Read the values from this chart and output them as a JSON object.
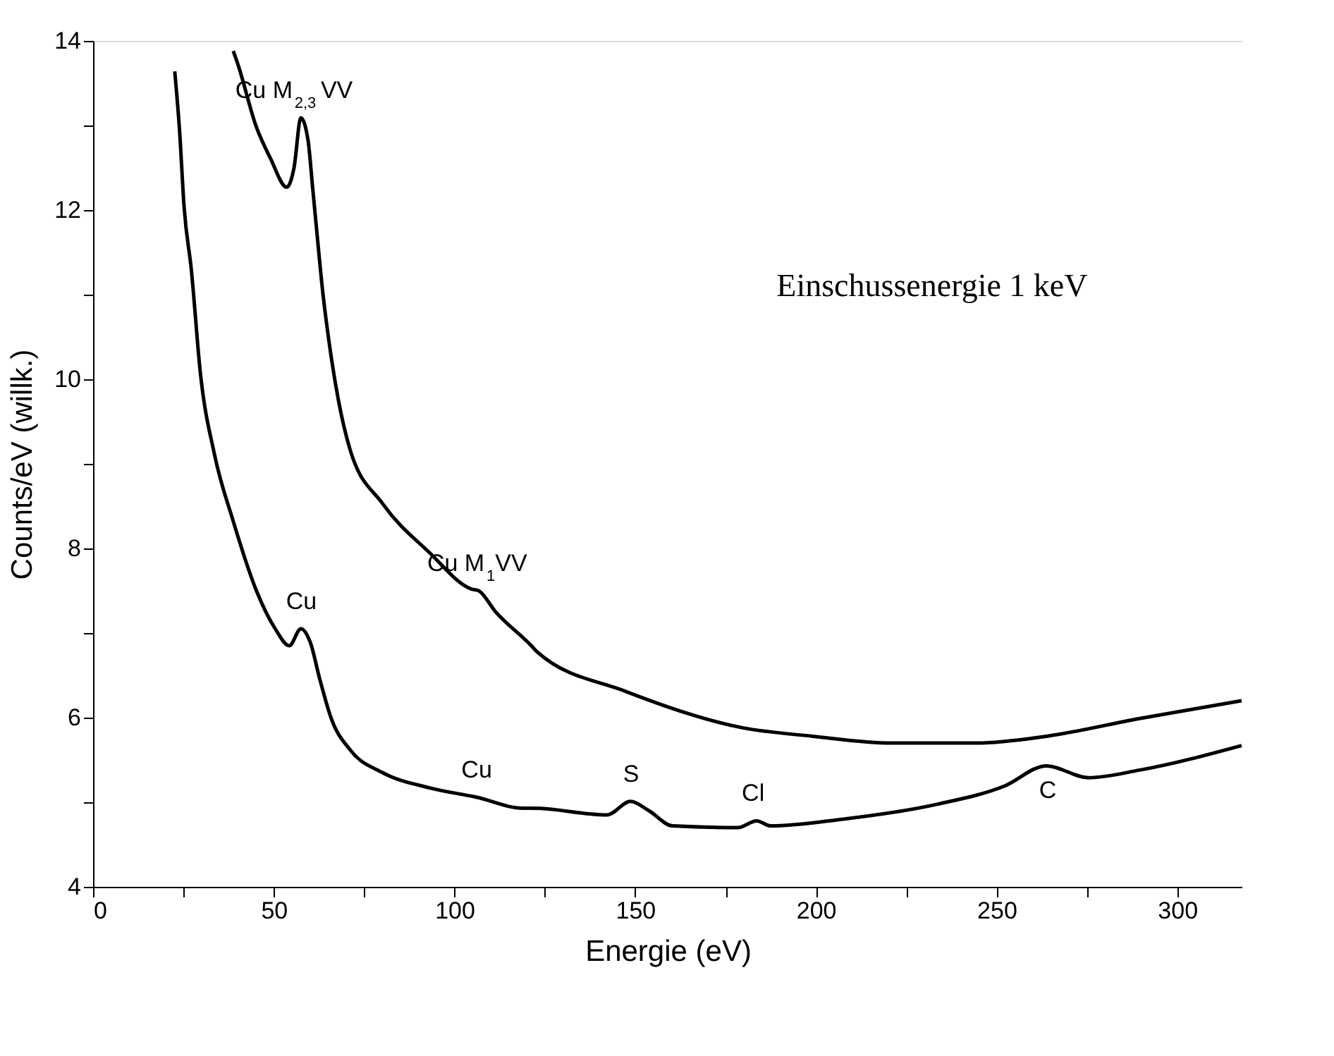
{
  "chart_data": {
    "type": "line",
    "xlabel": "Energie (eV)",
    "ylabel": "Counts/eV (willk.)",
    "xlim": [
      0,
      318
    ],
    "ylim": [
      4,
      14
    ],
    "xticks": [
      0,
      {
        "value": 25,
        "label": null
      },
      50,
      {
        "value": 75,
        "label": null
      },
      100,
      {
        "value": 125,
        "label": null
      },
      150,
      {
        "value": 175,
        "label": null
      },
      200,
      {
        "value": 225,
        "label": null
      },
      250,
      {
        "value": 275,
        "label": null
      },
      300
    ],
    "yticks": [
      4,
      {
        "value": 5,
        "label": null
      },
      6,
      {
        "value": 7,
        "label": null
      },
      8,
      {
        "value": 9,
        "label": null
      },
      10,
      {
        "value": 11,
        "label": null
      },
      12,
      {
        "value": 13,
        "label": null
      },
      14
    ],
    "grid": false,
    "series": [
      {
        "color": "#000000",
        "x": [
          38.8,
          40.1,
          45.2,
          49.1,
          53.6,
          55.6,
          57.5,
          59.5,
          60.7,
          62.1,
          63.3,
          65.3,
          67.9,
          71.1,
          80.1,
          93.1,
          104.7,
          106.7,
          111.2,
          121.5,
          122.8,
          147.4,
          179.7,
          199.1,
          221.1,
          244.4,
          263.8,
          289.6,
          317.8
        ],
        "values": [
          13.88,
          13.72,
          12.98,
          12.61,
          12.27,
          12.5,
          13.09,
          12.82,
          12.29,
          11.66,
          11.13,
          10.44,
          9.75,
          9.17,
          8.53,
          7.95,
          7.52,
          7.5,
          7.26,
          6.84,
          6.78,
          6.31,
          5.88,
          5.78,
          5.7,
          5.7,
          5.78,
          5.99,
          6.2
        ]
      },
      {
        "color": "#000000",
        "x": [
          22.6,
          23.9,
          25.2,
          27.2,
          29.7,
          33.6,
          38.8,
          45.2,
          50.4,
          54.3,
          57.5,
          60.1,
          62.7,
          65.9,
          71.1,
          80.1,
          93.1,
          106,
          118.9,
          121.5,
          142.2,
          148.7,
          153.8,
          160.3,
          178.4,
          183.6,
          187.5,
          205.6,
          234,
          252.1,
          263.8,
          275.4,
          289.6,
          317.8
        ],
        "values": [
          13.64,
          12.96,
          12.03,
          11.29,
          10.07,
          9.11,
          8.32,
          7.5,
          7.05,
          6.85,
          7.05,
          6.89,
          6.46,
          5.99,
          5.62,
          5.35,
          5.17,
          5.06,
          4.93,
          4.93,
          4.85,
          5.01,
          4.9,
          4.72,
          4.7,
          4.78,
          4.72,
          4.79,
          4.98,
          5.19,
          5.43,
          5.29,
          5.38,
          5.67
        ]
      }
    ],
    "annotations": [
      {
        "text": "Cu M$_{2,3}$VV",
        "x": 57.5,
        "y": 13.09
      },
      {
        "text": "Cu M$_{1}$VV",
        "x": 106.7,
        "y": 7.5
      },
      {
        "text": "Cu",
        "x": 57.5,
        "y": 7.05
      },
      {
        "text": "Cu",
        "x": 106,
        "y": 5.06
      },
      {
        "text": "S",
        "x": 148.7,
        "y": 5.01
      },
      {
        "text": "Cl",
        "x": 183.6,
        "y": 4.78
      },
      {
        "text": "C",
        "x": 263.8,
        "y": 5.43
      },
      "Einschussenergie 1 keV"
    ]
  }
}
